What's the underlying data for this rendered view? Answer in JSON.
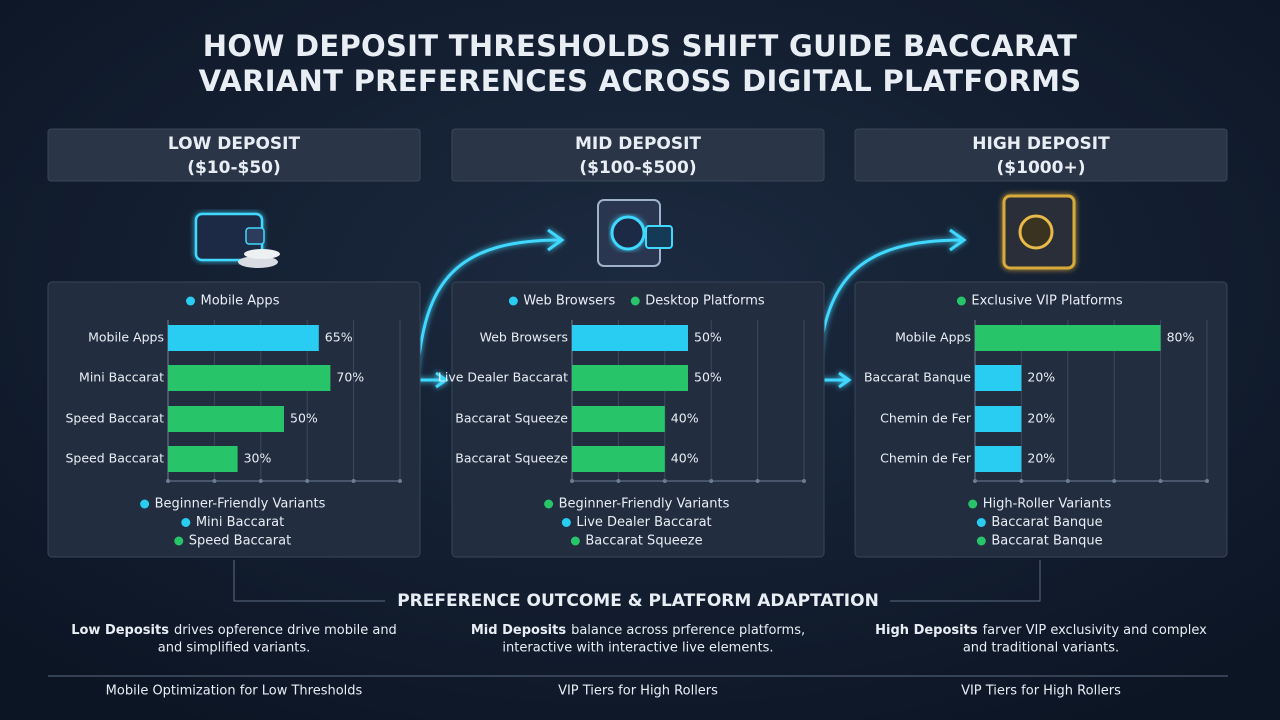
{
  "title_lines": [
    "HOW DEPOSIT THRESHOLDS SHIFT GUIDE BACCARAT",
    "VARIANT PREFERENCES ACROSS DIGITAL PLATFORMS"
  ],
  "chart_data": [
    {
      "type": "bar",
      "orientation": "horizontal",
      "title": "LOW DEPOSIT",
      "subtitle": "($10-$50)",
      "legend": [
        {
          "name": "Mobile Apps",
          "color": "#29cdf2"
        }
      ],
      "categories": [
        "Mobile Apps",
        "Mini Baccarat",
        "Speed Baccarat",
        "Speed Baccarat"
      ],
      "values": [
        65,
        70,
        50,
        30
      ],
      "value_labels": [
        "65%",
        "70%",
        "50%",
        "30%"
      ],
      "colors": [
        "#29cdf2",
        "#27c46a",
        "#27c46a",
        "#27c46a"
      ],
      "xlim": [
        0,
        100
      ],
      "xticks": [
        0,
        20,
        40,
        60,
        80,
        100
      ],
      "grid": true,
      "notes": {
        "heading": "Beginner-Friendly Variants",
        "heading_color": "#29cdf2",
        "items": [
          {
            "name": "Mini Baccarat",
            "color": "#29cdf2"
          },
          {
            "name": "Speed Baccarat",
            "color": "#27c46a"
          }
        ]
      }
    },
    {
      "type": "bar",
      "orientation": "horizontal",
      "title": "MID DEPOSIT",
      "subtitle": "($100-$500)",
      "legend": [
        {
          "name": "Web Browsers",
          "color": "#29cdf2"
        },
        {
          "name": "Desktop Platforms",
          "color": "#27c46a"
        }
      ],
      "categories": [
        "Web Browsers",
        "Live Dealer Baccarat",
        "Baccarat Squeeze",
        "Baccarat Squeeze"
      ],
      "values": [
        50,
        50,
        40,
        40
      ],
      "value_labels": [
        "50%",
        "50%",
        "40%",
        "40%"
      ],
      "colors": [
        "#29cdf2",
        "#27c46a",
        "#27c46a",
        "#27c46a"
      ],
      "xlim": [
        0,
        100
      ],
      "xticks": [
        0,
        20,
        40,
        60,
        80,
        100
      ],
      "grid": true,
      "notes": {
        "heading": "Beginner-Friendly Variants",
        "heading_color": "#27c46a",
        "items": [
          {
            "name": "Live Dealer Baccarat",
            "color": "#29cdf2"
          },
          {
            "name": "Baccarat Squeeze",
            "color": "#27c46a"
          }
        ]
      }
    },
    {
      "type": "bar",
      "orientation": "horizontal",
      "title": "HIGH DEPOSIT",
      "subtitle": "($1000+)",
      "legend": [
        {
          "name": "Exclusive VIP Platforms",
          "color": "#27c46a"
        }
      ],
      "categories": [
        "Mobile Apps",
        "Baccarat Banque",
        "Chemin de Fer",
        "Chemin de Fer"
      ],
      "values": [
        80,
        20,
        20,
        20
      ],
      "value_labels": [
        "80%",
        "20%",
        "20%",
        "20%"
      ],
      "colors": [
        "#27c46a",
        "#29cdf2",
        "#29cdf2",
        "#29cdf2"
      ],
      "xlim": [
        0,
        100
      ],
      "xticks": [
        0,
        20,
        40,
        60,
        80,
        100
      ],
      "grid": true,
      "notes": {
        "heading": "High-Roller Variants",
        "heading_color": "#27c46a",
        "items": [
          {
            "name": "Baccarat Banque",
            "color": "#29cdf2"
          },
          {
            "name": "Baccarat Banque",
            "color": "#27c46a"
          }
        ]
      }
    }
  ],
  "outcome": {
    "title": "PREFERENCE OUTCOME & PLATFORM ADAPTATION",
    "descriptions": [
      {
        "lead": "Low Deposits",
        "line1": "drives opference drive mobile and",
        "line2": "and simplified variants."
      },
      {
        "lead": "Mid Deposits",
        "line1": "balance across prference platforms,",
        "line2": "interactive with interactive live elements."
      },
      {
        "lead": "High Deposits",
        "line1": "farver VIP exclusivity and complex",
        "line2": "and traditional variants."
      }
    ],
    "footer": [
      "Mobile Optimization for Low Thresholds",
      "VIP Tiers for High Rollers",
      "VIP Tiers for High Rollers"
    ]
  }
}
